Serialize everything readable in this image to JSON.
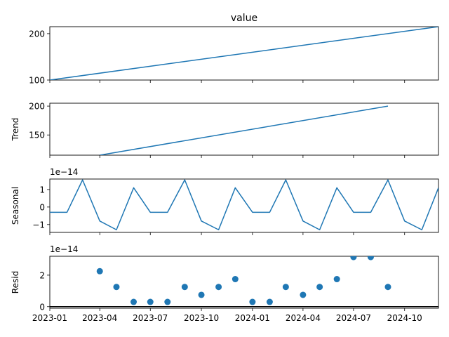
{
  "chart_data": {
    "type": "line",
    "title": "value",
    "series_color": "#1f77b4",
    "x_ticks": [
      "2023-01",
      "2023-04",
      "2023-07",
      "2023-10",
      "2024-01",
      "2024-04",
      "2024-07",
      "2024-10"
    ],
    "x_range": [
      "2023-01-01",
      "2024-12-01"
    ],
    "panels": [
      {
        "key": "observed",
        "title": "value",
        "ylabel": "",
        "offset_label": "",
        "kind": "line",
        "ylim": [
          100,
          215
        ],
        "yticks": [
          100,
          200
        ],
        "x": [
          "2023-01-01",
          "2024-12-01"
        ],
        "values": [
          100,
          215
        ]
      },
      {
        "key": "trend",
        "title": "",
        "ylabel": "Trend",
        "offset_label": "",
        "kind": "line",
        "ylim": [
          115,
          205
        ],
        "yticks": [
          150,
          200
        ],
        "x": [
          "2023-04-01",
          "2024-09-01"
        ],
        "values": [
          115,
          200
        ]
      },
      {
        "key": "seasonal",
        "title": "",
        "ylabel": "Seasonal",
        "offset_label": "1e−14",
        "kind": "line",
        "ylim": [
          -1.45,
          1.6
        ],
        "yticks": [
          -1,
          0,
          1
        ],
        "x": [
          "2023-01-01",
          "2023-02-01",
          "2023-03-01",
          "2023-04-01",
          "2023-05-01",
          "2023-06-01",
          "2023-07-01",
          "2023-08-01",
          "2023-09-01",
          "2023-10-01",
          "2023-11-01",
          "2023-12-01",
          "2024-01-01",
          "2024-02-01",
          "2024-03-01",
          "2024-04-01",
          "2024-05-01",
          "2024-06-01",
          "2024-07-01",
          "2024-08-01",
          "2024-09-01",
          "2024-10-01",
          "2024-11-01",
          "2024-12-01"
        ],
        "values": [
          -0.3,
          -0.3,
          1.55,
          -0.8,
          -1.3,
          1.1,
          -0.3,
          -0.3,
          1.55,
          -0.8,
          -1.3,
          1.1,
          -0.3,
          -0.3,
          1.55,
          -0.8,
          -1.3,
          1.1,
          -0.3,
          -0.3,
          1.55,
          -0.8,
          -1.3,
          1.1
        ]
      },
      {
        "key": "resid",
        "title": "",
        "ylabel": "Resid",
        "offset_label": "1e−14",
        "kind": "scatter",
        "ylim": [
          -0.1,
          3.2
        ],
        "yticks": [
          0,
          2
        ],
        "zero_line": true,
        "x": [
          "2023-04-01",
          "2023-05-01",
          "2023-06-01",
          "2023-07-01",
          "2023-08-01",
          "2023-09-01",
          "2023-10-01",
          "2023-11-01",
          "2023-12-01",
          "2024-01-01",
          "2024-02-01",
          "2024-03-01",
          "2024-04-01",
          "2024-05-01",
          "2024-06-01",
          "2024-07-01",
          "2024-08-01",
          "2024-09-01"
        ],
        "values": [
          2.25,
          1.25,
          0.3,
          0.3,
          0.3,
          1.25,
          0.75,
          1.25,
          1.75,
          0.3,
          0.3,
          1.25,
          0.75,
          1.25,
          1.75,
          3.15,
          3.15,
          1.25
        ]
      }
    ]
  }
}
